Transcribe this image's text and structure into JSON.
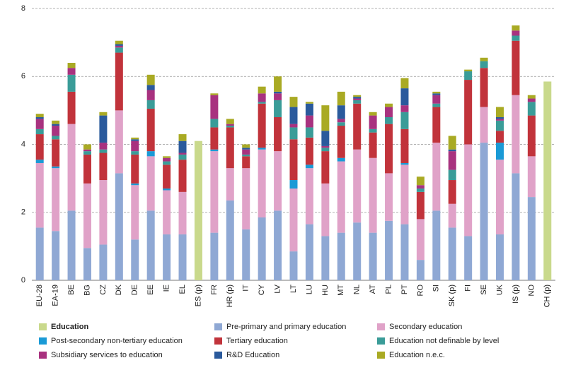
{
  "chart_data": {
    "type": "stacked_bar",
    "categories": [
      "EU-28",
      "EA-19",
      "BE",
      "BG",
      "CZ",
      "DK",
      "DE",
      "EE",
      "IE",
      "EL",
      "ES (p)",
      "FR",
      "HR (p)",
      "IT",
      "CY",
      "LV",
      "LT",
      "LU",
      "HU",
      "MT",
      "NL",
      "AT",
      "PL",
      "PT",
      "RO",
      "SI",
      "SK (p)",
      "FI",
      "SE",
      "UK",
      "IS (p)",
      "NO",
      "CH (p)"
    ],
    "series": [
      {
        "name": "Education",
        "color": "#c9d98c",
        "values": [
          null,
          null,
          null,
          null,
          null,
          null,
          null,
          null,
          null,
          null,
          4.1,
          null,
          null,
          null,
          null,
          null,
          null,
          null,
          null,
          null,
          null,
          null,
          null,
          null,
          null,
          null,
          null,
          null,
          null,
          null,
          null,
          null,
          5.85
        ]
      },
      {
        "name": "Pre-primary and primary education",
        "color": "#8fa8d4",
        "values": [
          1.55,
          1.45,
          2.05,
          0.95,
          1.05,
          3.15,
          1.2,
          2.05,
          1.35,
          1.35,
          null,
          1.4,
          2.35,
          1.5,
          1.85,
          2.05,
          0.85,
          1.65,
          1.3,
          1.4,
          1.7,
          1.4,
          1.75,
          1.65,
          0.6,
          2.05,
          1.55,
          1.3,
          4.05,
          1.35,
          3.15,
          2.45,
          null
        ]
      },
      {
        "name": "Secondary education",
        "color": "#e0a2c8",
        "values": [
          1.9,
          1.85,
          2.55,
          1.9,
          1.9,
          1.85,
          1.6,
          1.6,
          1.3,
          1.25,
          null,
          2.4,
          0.95,
          1.8,
          2.0,
          1.75,
          1.85,
          1.65,
          1.55,
          2.1,
          2.15,
          2.2,
          1.4,
          1.75,
          1.2,
          2.0,
          0.7,
          2.7,
          1.05,
          2.2,
          2.3,
          1.2,
          null
        ]
      },
      {
        "name": "Post-secondary non-tertiary education",
        "color": "#1a9ad6",
        "values": [
          0.1,
          0.05,
          0,
          0,
          0,
          0,
          0.05,
          0.15,
          0.05,
          0,
          null,
          0.05,
          0,
          0,
          0.05,
          0,
          0.25,
          0.1,
          0,
          0.1,
          0,
          0,
          0,
          0.05,
          0,
          0,
          0,
          0,
          0,
          0.5,
          0,
          0,
          null
        ]
      },
      {
        "name": "Tertiary education",
        "color": "#c1333b",
        "values": [
          0.75,
          0.8,
          0.95,
          0.85,
          0.8,
          1.7,
          0.85,
          1.25,
          0.7,
          0.95,
          null,
          0.65,
          1.2,
          0.35,
          1.3,
          1.0,
          1.2,
          0.8,
          0.95,
          0.95,
          1.35,
          0.75,
          1.45,
          1.0,
          0.8,
          1.05,
          0.7,
          1.9,
          1.15,
          0.35,
          1.6,
          1.2,
          null
        ]
      },
      {
        "name": "Education not definable by level",
        "color": "#3a9c98",
        "values": [
          0.15,
          0.1,
          0.5,
          0.1,
          0.1,
          0.15,
          0.1,
          0.25,
          0.1,
          0.15,
          null,
          0.25,
          0.05,
          0.05,
          0.05,
          0.5,
          0.35,
          0.3,
          0.1,
          0.1,
          0.1,
          0.1,
          0.2,
          0.5,
          0.1,
          0.1,
          0.3,
          0.25,
          0.2,
          0.3,
          0.15,
          0.4,
          null
        ]
      },
      {
        "name": "Subsidiary services to education",
        "color": "#a8327f",
        "values": [
          0.3,
          0.3,
          0.2,
          0.05,
          0.2,
          0.05,
          0.3,
          0.3,
          0.1,
          0.05,
          null,
          0.7,
          0.05,
          0.15,
          0.25,
          0.2,
          0.1,
          0.35,
          0.05,
          0.1,
          0.05,
          0.4,
          0.3,
          0.2,
          0.1,
          0.25,
          0.55,
          0,
          0,
          0.05,
          0.15,
          0.1,
          null
        ]
      },
      {
        "name": "R&D Education",
        "color": "#2a5a9c",
        "values": [
          0.05,
          0.05,
          0,
          0,
          0.8,
          0.05,
          0.05,
          0.15,
          0,
          0.35,
          null,
          0,
          0,
          0.05,
          0,
          0.05,
          0.5,
          0.35,
          0.45,
          0.4,
          0.05,
          0,
          0,
          0.5,
          0,
          0.05,
          0.05,
          0,
          0,
          0.05,
          0,
          0,
          null
        ]
      },
      {
        "name": "Education n.e.c.",
        "color": "#a9aa24",
        "values": [
          0.1,
          0.1,
          0.15,
          0.15,
          0.1,
          0.1,
          0.05,
          0.3,
          0.05,
          0.2,
          null,
          0.05,
          0.15,
          0.1,
          0.2,
          0.45,
          0.3,
          0.05,
          0.75,
          0.4,
          0.05,
          0.1,
          0.1,
          0.3,
          0.25,
          0.05,
          0.4,
          0.05,
          0.1,
          0.3,
          0.15,
          0.1,
          null
        ]
      }
    ],
    "ylim": [
      0,
      8
    ],
    "yticks": [
      0,
      2,
      4,
      6,
      8
    ],
    "grid": true
  }
}
